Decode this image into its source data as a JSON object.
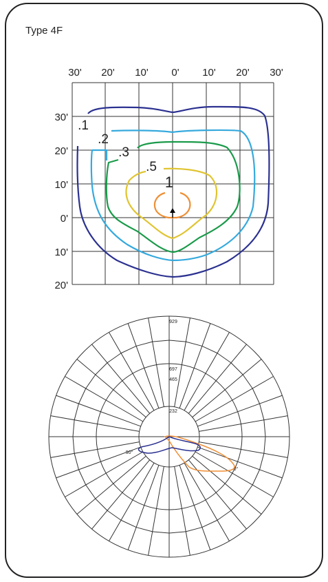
{
  "title": "Type 4F",
  "grid": {
    "top_labels": [
      "30'",
      "20'",
      "10'",
      "0'",
      "10'",
      "20'",
      "30'"
    ],
    "left_labels": [
      "30'",
      "20'",
      "10'",
      "0'",
      "10'",
      "20'"
    ]
  },
  "contour_labels": [
    ".1",
    ".2",
    ".3",
    ".5",
    "1"
  ],
  "polar": {
    "ring_labels": [
      "929",
      "697",
      "465",
      "232"
    ],
    "angle_labels": [
      "90°",
      "0°"
    ]
  }
}
